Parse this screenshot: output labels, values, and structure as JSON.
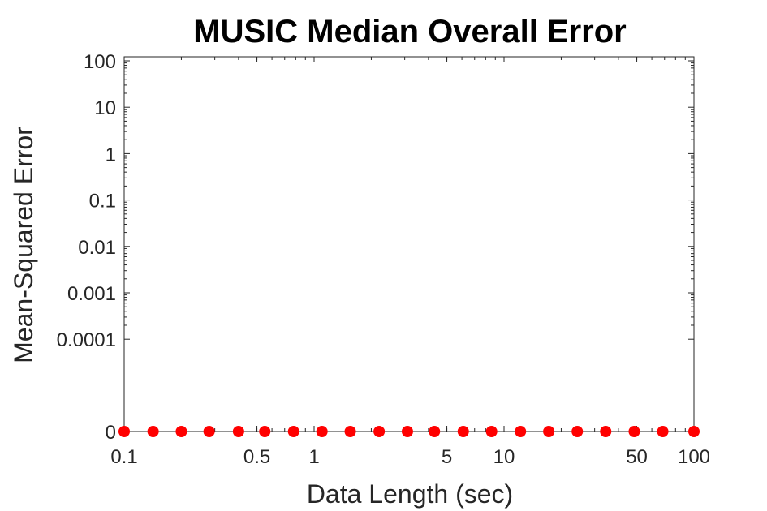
{
  "chart_data": {
    "type": "scatter",
    "title": "MUSIC Median Overall Error",
    "xlabel": "Data Length (sec)",
    "ylabel": "Mean-Squared Error",
    "xscale": "log",
    "yscale": "log",
    "xlim": [
      0.1,
      100
    ],
    "y_ticks": [
      "100",
      "10",
      "1",
      "0.1",
      "0.01",
      "0.001",
      "0.0001",
      "0"
    ],
    "x_ticks": [
      "0.1",
      "0.5",
      "1",
      "5",
      "10",
      "50",
      "100"
    ],
    "grid": false,
    "marker_color": "#ff0000",
    "series": [
      {
        "x": [
          0.1,
          0.142,
          0.2,
          0.28,
          0.4,
          0.55,
          0.78,
          1.1,
          1.55,
          2.2,
          3.1,
          4.3,
          6.1,
          8.6,
          12.2,
          17.2,
          24.3,
          34.3,
          48.5,
          68.5,
          100
        ],
        "y": [
          0,
          0,
          0,
          0,
          0,
          0,
          0,
          0,
          0,
          0,
          0,
          0,
          0,
          0,
          0,
          0,
          0,
          0,
          0,
          0,
          0
        ]
      }
    ]
  }
}
